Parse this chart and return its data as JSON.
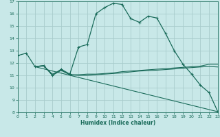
{
  "xlabel": "Humidex (Indice chaleur)",
  "bg_color": "#c8e8e8",
  "grid_color": "#a8cccc",
  "line_color": "#1a6b5a",
  "xlim": [
    0,
    23
  ],
  "ylim": [
    8,
    17
  ],
  "xticks": [
    0,
    1,
    2,
    3,
    4,
    5,
    6,
    7,
    8,
    9,
    10,
    11,
    12,
    13,
    14,
    15,
    16,
    17,
    18,
    19,
    20,
    21,
    22,
    23
  ],
  "yticks": [
    8,
    9,
    10,
    11,
    12,
    13,
    14,
    15,
    16,
    17
  ],
  "curve1_x": [
    0,
    1,
    2,
    3,
    4,
    5,
    6,
    7,
    8,
    9,
    10,
    11,
    12,
    13,
    14,
    15,
    16,
    17,
    18,
    19,
    20,
    21,
    22,
    23
  ],
  "curve1_y": [
    12.6,
    12.8,
    11.7,
    11.8,
    11.0,
    11.5,
    11.1,
    13.3,
    13.5,
    16.0,
    16.5,
    16.85,
    16.75,
    15.6,
    15.3,
    15.8,
    15.65,
    14.4,
    13.0,
    11.9,
    11.1,
    10.2,
    9.6,
    8.05
  ],
  "curve2_x": [
    2,
    3,
    4,
    5,
    6,
    7,
    8,
    9,
    10,
    11,
    12,
    13,
    14,
    15,
    16,
    17,
    18,
    19,
    20,
    21,
    22,
    23
  ],
  "curve2_y": [
    11.7,
    11.8,
    11.0,
    11.4,
    11.05,
    11.05,
    11.1,
    11.1,
    11.15,
    11.2,
    11.3,
    11.35,
    11.4,
    11.45,
    11.5,
    11.55,
    11.6,
    11.65,
    11.7,
    11.75,
    11.9,
    11.9
  ],
  "curve3_x": [
    2,
    3,
    4,
    5,
    6,
    7,
    8,
    9,
    10,
    11,
    12,
    13,
    14,
    15,
    16,
    17,
    18,
    19,
    20,
    21,
    22,
    23
  ],
  "curve3_y": [
    11.7,
    11.75,
    11.1,
    11.45,
    11.05,
    11.0,
    11.0,
    11.05,
    11.1,
    11.15,
    11.2,
    11.28,
    11.35,
    11.38,
    11.42,
    11.47,
    11.52,
    11.58,
    11.63,
    11.68,
    11.72,
    11.68
  ],
  "curve4_x": [
    2,
    23
  ],
  "curve4_y": [
    11.7,
    8.05
  ]
}
